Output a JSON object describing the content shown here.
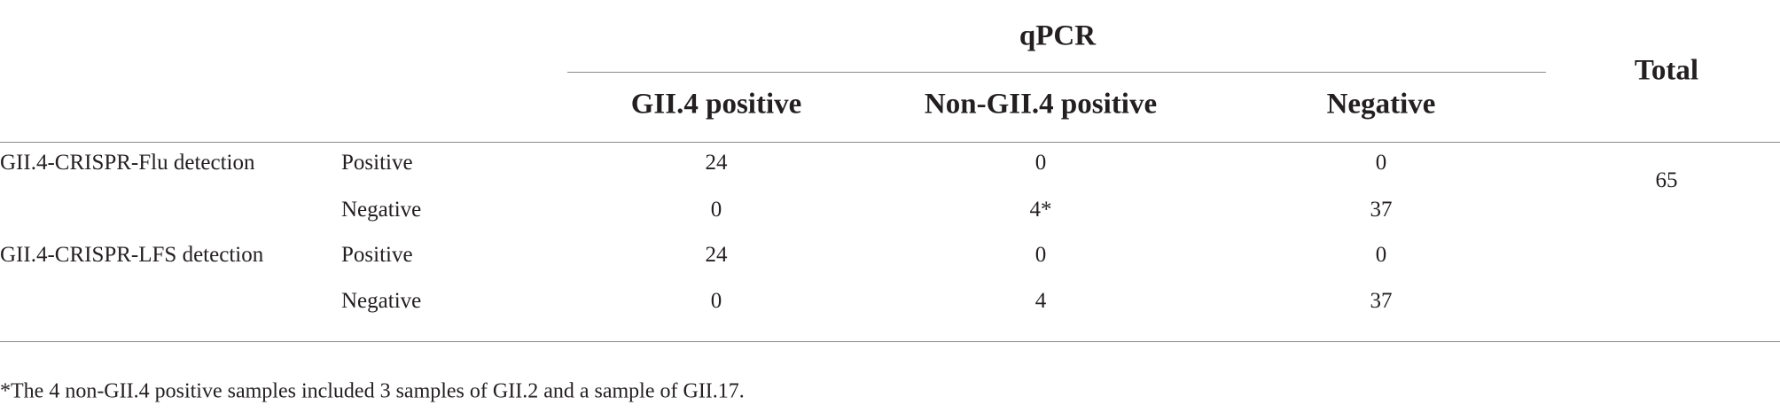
{
  "table": {
    "group_header": "qPCR",
    "total_header": "Total",
    "columns": [
      "GII.4 positive",
      "Non-GII.4 positive",
      "Negative"
    ],
    "rows": [
      {
        "method": "GII.4-CRISPR-Flu detection",
        "result": "Positive",
        "cells": [
          24,
          0,
          0
        ]
      },
      {
        "method": null,
        "result": "Negative",
        "cells": [
          0,
          "4*",
          37
        ]
      },
      {
        "method": "GII.4-CRISPR-LFS detection",
        "result": "Positive",
        "cells": [
          24,
          0,
          0
        ]
      },
      {
        "method": null,
        "result": "Negative",
        "cells": [
          0,
          4,
          37
        ]
      }
    ],
    "total": 65
  },
  "footnote": "*The 4 non-GII.4 positive samples included 3 samples of GII.2 and a sample of GII.17."
}
